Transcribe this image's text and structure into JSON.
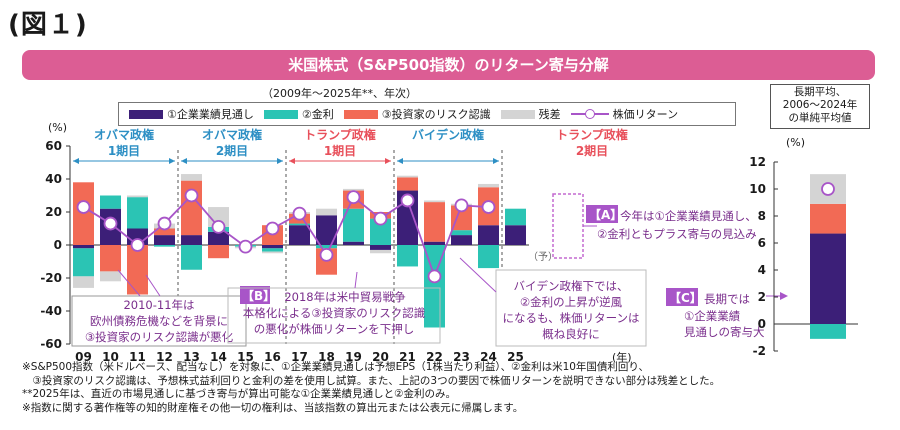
{
  "figure_label": "(図１)",
  "banner_title": "米国株式（S&P500指数）のリターン寄与分解",
  "period_note": "（2009年～2025年**、年次）",
  "long_term_title": [
    "長期平均、",
    "2006～2024年",
    "の単純平均値"
  ],
  "legend": {
    "eps": "①企業業績見通し",
    "rate": "②金利",
    "risk": "③投資家のリスク認識",
    "resid": "残差",
    "ret": "株価リターン"
  },
  "colors": {
    "eps": "#3c1f78",
    "rate": "#2bc4b4",
    "risk": "#f26a55",
    "resid": "#d4d4d4",
    "ret": "#a855c8",
    "era_blue": "#2d8fc4",
    "era_red": "#e8505b"
  },
  "eras": [
    {
      "line1": "オバマ政権",
      "line2": "1期目",
      "color": "blue"
    },
    {
      "line1": "オバマ政権",
      "line2": "2期目",
      "color": "blue"
    },
    {
      "line1": "トランプ政権",
      "line2": "1期目",
      "color": "red"
    },
    {
      "line1": "バイデン政権",
      "line2": "",
      "color": "blue"
    },
    {
      "line1": "トランプ政権",
      "line2": "2期目",
      "color": "red"
    }
  ],
  "yoso_label": "（予）",
  "year_unit": "(年)",
  "annotations": {
    "A_tag": "【A】",
    "A_text": [
      "今年は①企業業績見通し、",
      "②金利ともプラス寄与の見込み"
    ],
    "B_tag": "【B】",
    "B_text": [
      "2018年は米中貿易戦争",
      "本格化による③投資家のリスク認識",
      "の悪化が株価リターンを下押し"
    ],
    "C_tag": "【C】",
    "C_text": [
      "長期では",
      "①企業業績",
      "見通しの寄与大"
    ],
    "euro_text": [
      "2010-11年は",
      "欧州債務危機などを背景に",
      "③投資家のリスク認識が悪化"
    ],
    "biden_text": [
      "バイデン政権下では、",
      "②金利の上昇が逆風",
      "になるも、株価リターンは",
      "概ね良好に"
    ]
  },
  "notes": [
    "※S&P500指数（米ドルベース、配当なし）を対象に、①企業業績見通しは予想EPS（1株当たり利益）、②金利は米10年国債利回り、",
    "　③投資家のリスク認識は、予想株式益利回りと金利の差を使用し試算。また、上記の3つの要因で株価リターンを説明できない部分は残差とした。",
    "**2025年は、直近の市場見通しに基づき寄与が算出可能な①企業業績見通しと②金利のみ。",
    "※指数に関する著作権等の知的財産権その他一切の権利は、当該指数の算出元または公表元に帰属します。"
  ],
  "chart_data": [
    {
      "type": "bar",
      "stacked": true,
      "ylabel": "(%)",
      "xlabel": "(年)",
      "ylim": [
        -60,
        60
      ],
      "yticks": [
        -60,
        -40,
        -20,
        0,
        20,
        40,
        60
      ],
      "categories": [
        "09",
        "10",
        "11",
        "12",
        "13",
        "14",
        "15",
        "16",
        "17",
        "18",
        "19",
        "20",
        "21",
        "22",
        "23",
        "24",
        "25"
      ],
      "series": [
        {
          "name": "①企業業績見通し",
          "key": "eps",
          "values": [
            -2,
            22,
            10,
            6,
            6,
            8,
            0,
            -2,
            12,
            18,
            2,
            -3,
            33,
            2,
            6,
            12,
            12
          ]
        },
        {
          "name": "②金利",
          "key": "rate",
          "values": [
            -17,
            8,
            19,
            -1,
            -15,
            3,
            -1,
            -2,
            1,
            -2,
            20,
            16,
            -13,
            -50,
            3,
            -14,
            10
          ]
        },
        {
          "name": "③投資家のリスク認識",
          "key": "risk",
          "values": [
            38,
            -16,
            -30,
            4,
            33,
            -8,
            0,
            12,
            6,
            -16,
            11,
            4,
            8,
            24,
            15,
            23,
            null
          ]
        },
        {
          "name": "残差",
          "key": "resid",
          "values": [
            -7,
            -6,
            1,
            3,
            4,
            12,
            -1,
            -1,
            1,
            4,
            1,
            -2,
            1,
            1,
            1,
            2,
            null
          ]
        },
        {
          "name": "株価リターン",
          "key": "ret",
          "type": "line",
          "values": [
            23,
            13,
            0,
            13,
            30,
            11,
            -1,
            10,
            19,
            -6,
            29,
            16,
            27,
            -19,
            24,
            23,
            null
          ]
        }
      ],
      "grid": false,
      "legend_position": "top"
    },
    {
      "type": "bar",
      "stacked": true,
      "title": "長期平均、2006～2024年の単純平均値",
      "ylabel": "(%)",
      "ylim": [
        -2,
        12
      ],
      "yticks": [
        -2,
        0,
        2,
        4,
        6,
        8,
        10,
        12
      ],
      "categories": [
        "long-term"
      ],
      "series": [
        {
          "name": "①企業業績見通し",
          "key": "eps",
          "values": [
            6.7
          ]
        },
        {
          "name": "②金利",
          "key": "rate",
          "values": [
            -1.1
          ]
        },
        {
          "name": "③投資家のリスク認識",
          "key": "risk",
          "values": [
            2.2
          ]
        },
        {
          "name": "残差",
          "key": "resid",
          "values": [
            2.2
          ]
        },
        {
          "name": "株価リターン",
          "key": "ret",
          "type": "line",
          "values": [
            10.0
          ]
        }
      ]
    }
  ]
}
